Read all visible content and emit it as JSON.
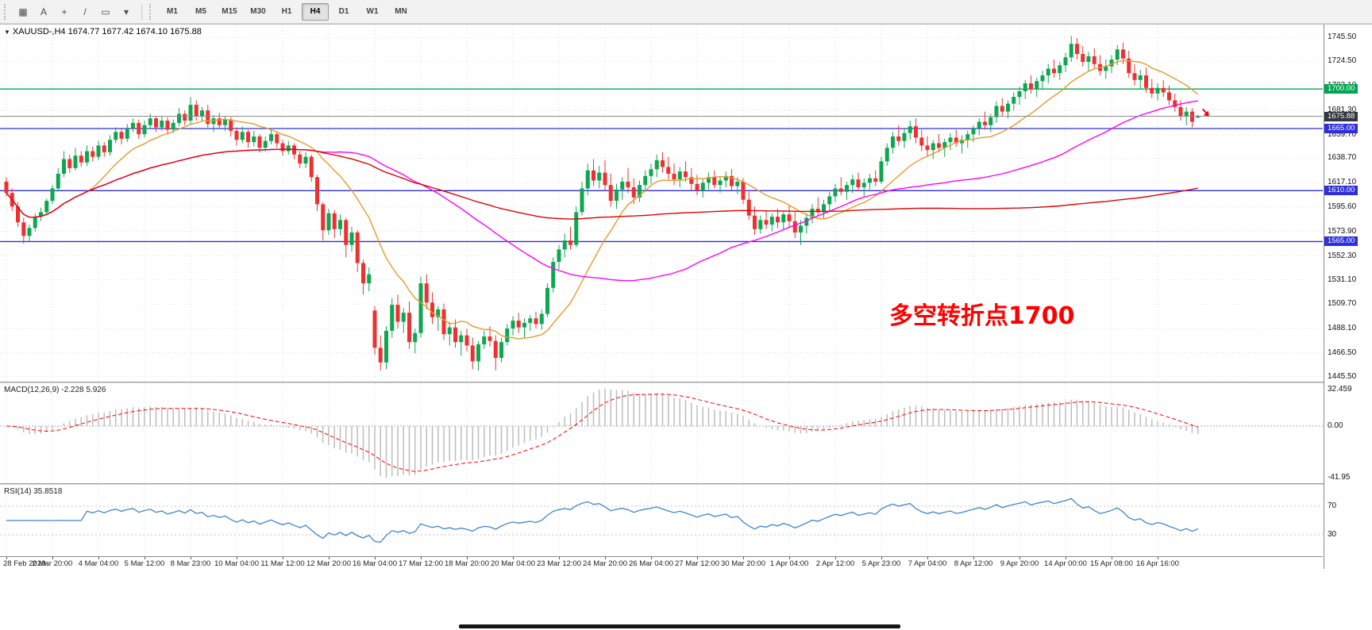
{
  "toolbar": {
    "tools": [
      {
        "name": "chart-grid-icon",
        "glyph": "▦"
      },
      {
        "name": "text-label-icon",
        "glyph": "A"
      },
      {
        "name": "crosshair-icon",
        "glyph": "+"
      },
      {
        "name": "trendline-icon",
        "glyph": "/"
      },
      {
        "name": "shapes-icon",
        "glyph": "▭"
      },
      {
        "name": "dropdown-arrow-icon",
        "glyph": "▾"
      }
    ],
    "timeframes": [
      "M1",
      "M5",
      "M15",
      "M30",
      "H1",
      "H4",
      "D1",
      "W1",
      "MN"
    ],
    "active_timeframe": "H4"
  },
  "chart": {
    "title_line": {
      "collapse_glyph": "▼",
      "symbol_period": "XAUUSD-,H4",
      "ohlc": "1674.77 1677.42 1674.10 1675.88"
    },
    "annotation": {
      "text": "多空转折点1700",
      "color": "#FF0000"
    },
    "current_price": {
      "value": 1675.88,
      "label": "1675.88"
    },
    "hlines": [
      {
        "price": 1700.0,
        "label": "1700.00",
        "color": "#00A651"
      },
      {
        "price": 1665.0,
        "label": "1665.00",
        "color": "#2E2EDD"
      },
      {
        "price": 1610.0,
        "label": "1610.00",
        "color": "#2E2EDD"
      },
      {
        "price": 1565.0,
        "label": "1565.00",
        "color": "#2E2EDD"
      }
    ],
    "price_ticks": [
      "1745.50",
      "1724.50",
      "1703.10",
      "1681.30",
      "1659.70",
      "1638.70",
      "1617.10",
      "1595.60",
      "1573.90",
      "1552.30",
      "1531.10",
      "1509.70",
      "1488.10",
      "1466.50",
      "1445.50"
    ],
    "colors": {
      "up": "#0CA750",
      "down": "#F03030",
      "grid": "#DEDEDE",
      "price_line": "#8a8a8a",
      "price_badge_bg": "#33363F"
    },
    "marker": {
      "type": "sell-arrow",
      "price": 1676,
      "color": "#FF0000"
    }
  },
  "chart_data": {
    "type": "candlestick",
    "symbol": "XAUUSD-",
    "timeframe": "H4",
    "y_range": [
      1441,
      1757
    ],
    "moving_averages": [
      {
        "period": 14,
        "color": "#E59B2C"
      },
      {
        "period": 55,
        "color": "#FF00FF"
      },
      {
        "period": 144,
        "color": "#DD0404"
      }
    ],
    "candles": [
      [
        1618,
        1622,
        1605,
        1608
      ],
      [
        1608,
        1612,
        1592,
        1596
      ],
      [
        1596,
        1600,
        1578,
        1582
      ],
      [
        1582,
        1586,
        1563,
        1570
      ],
      [
        1570,
        1580,
        1565,
        1577
      ],
      [
        1577,
        1590,
        1574,
        1587
      ],
      [
        1587,
        1595,
        1583,
        1591
      ],
      [
        1591,
        1603,
        1589,
        1601
      ],
      [
        1601,
        1615,
        1598,
        1612
      ],
      [
        1612,
        1630,
        1610,
        1625
      ],
      [
        1625,
        1645,
        1622,
        1638
      ],
      [
        1638,
        1642,
        1626,
        1630
      ],
      [
        1630,
        1648,
        1628,
        1641
      ],
      [
        1641,
        1645,
        1631,
        1635
      ],
      [
        1635,
        1650,
        1632,
        1645
      ],
      [
        1645,
        1649,
        1636,
        1640
      ],
      [
        1640,
        1654,
        1637,
        1650
      ],
      [
        1650,
        1653,
        1640,
        1644
      ],
      [
        1644,
        1659,
        1641,
        1655
      ],
      [
        1655,
        1666,
        1652,
        1662
      ],
      [
        1662,
        1665,
        1651,
        1656
      ],
      [
        1656,
        1669,
        1653,
        1665
      ],
      [
        1665,
        1674,
        1662,
        1670
      ],
      [
        1670,
        1673,
        1656,
        1660
      ],
      [
        1660,
        1672,
        1657,
        1668
      ],
      [
        1668,
        1678,
        1665,
        1674
      ],
      [
        1674,
        1676,
        1662,
        1666
      ],
      [
        1666,
        1676,
        1663,
        1672
      ],
      [
        1672,
        1675,
        1660,
        1664
      ],
      [
        1664,
        1673,
        1661,
        1670
      ],
      [
        1670,
        1683,
        1667,
        1678
      ],
      [
        1678,
        1681,
        1668,
        1672
      ],
      [
        1672,
        1693,
        1669,
        1686
      ],
      [
        1686,
        1690,
        1672,
        1676
      ],
      [
        1676,
        1684,
        1671,
        1681
      ],
      [
        1681,
        1686,
        1666,
        1669
      ],
      [
        1669,
        1677,
        1662,
        1674
      ],
      [
        1674,
        1679,
        1665,
        1668
      ],
      [
        1668,
        1676,
        1663,
        1673
      ],
      [
        1673,
        1675,
        1658,
        1663
      ],
      [
        1663,
        1666,
        1650,
        1655
      ],
      [
        1655,
        1667,
        1652,
        1662
      ],
      [
        1662,
        1664,
        1648,
        1653
      ],
      [
        1653,
        1663,
        1649,
        1658
      ],
      [
        1658,
        1660,
        1644,
        1648
      ],
      [
        1648,
        1658,
        1645,
        1654
      ],
      [
        1654,
        1664,
        1651,
        1660
      ],
      [
        1660,
        1662,
        1648,
        1652
      ],
      [
        1652,
        1655,
        1641,
        1645
      ],
      [
        1645,
        1654,
        1642,
        1650
      ],
      [
        1650,
        1652,
        1638,
        1642
      ],
      [
        1642,
        1645,
        1630,
        1634
      ],
      [
        1634,
        1644,
        1630,
        1640
      ],
      [
        1640,
        1642,
        1618,
        1622
      ],
      [
        1622,
        1624,
        1592,
        1598
      ],
      [
        1598,
        1600,
        1566,
        1575
      ],
      [
        1575,
        1594,
        1571,
        1590
      ],
      [
        1590,
        1593,
        1568,
        1576
      ],
      [
        1576,
        1589,
        1570,
        1584
      ],
      [
        1584,
        1586,
        1551,
        1562
      ],
      [
        1562,
        1578,
        1556,
        1573
      ],
      [
        1573,
        1575,
        1538,
        1546
      ],
      [
        1546,
        1549,
        1518,
        1528
      ],
      [
        1528,
        1542,
        1521,
        1536
      ],
      [
        1504,
        1508,
        1465,
        1471
      ],
      [
        1471,
        1482,
        1451,
        1458
      ],
      [
        1458,
        1490,
        1452,
        1486
      ],
      [
        1486,
        1515,
        1480,
        1509
      ],
      [
        1509,
        1518,
        1488,
        1494
      ],
      [
        1494,
        1506,
        1484,
        1502
      ],
      [
        1502,
        1512,
        1470,
        1476
      ],
      [
        1476,
        1488,
        1466,
        1484
      ],
      [
        1484,
        1534,
        1480,
        1528
      ],
      [
        1528,
        1536,
        1505,
        1511
      ],
      [
        1511,
        1520,
        1492,
        1498
      ],
      [
        1498,
        1508,
        1486,
        1505
      ],
      [
        1505,
        1510,
        1478,
        1483
      ],
      [
        1483,
        1494,
        1473,
        1489
      ],
      [
        1489,
        1496,
        1471,
        1476
      ],
      [
        1476,
        1486,
        1464,
        1482
      ],
      [
        1482,
        1488,
        1468,
        1473
      ],
      [
        1473,
        1480,
        1452,
        1459
      ],
      [
        1459,
        1477,
        1451,
        1474
      ],
      [
        1474,
        1486,
        1470,
        1481
      ],
      [
        1481,
        1490,
        1472,
        1477
      ],
      [
        1477,
        1482,
        1451,
        1462
      ],
      [
        1462,
        1480,
        1458,
        1476
      ],
      [
        1476,
        1492,
        1473,
        1488
      ],
      [
        1488,
        1499,
        1482,
        1495
      ],
      [
        1495,
        1502,
        1484,
        1489
      ],
      [
        1489,
        1497,
        1480,
        1493
      ],
      [
        1493,
        1500,
        1486,
        1497
      ],
      [
        1497,
        1503,
        1488,
        1492
      ],
      [
        1492,
        1505,
        1487,
        1501
      ],
      [
        1501,
        1528,
        1498,
        1524
      ],
      [
        1524,
        1551,
        1520,
        1547
      ],
      [
        1547,
        1562,
        1540,
        1558
      ],
      [
        1558,
        1572,
        1551,
        1566
      ],
      [
        1566,
        1578,
        1558,
        1562
      ],
      [
        1562,
        1596,
        1560,
        1591
      ],
      [
        1591,
        1618,
        1588,
        1612
      ],
      [
        1612,
        1634,
        1606,
        1628
      ],
      [
        1628,
        1638,
        1614,
        1619
      ],
      [
        1619,
        1632,
        1612,
        1626
      ],
      [
        1626,
        1637,
        1610,
        1615
      ],
      [
        1615,
        1625,
        1596,
        1601
      ],
      [
        1601,
        1616,
        1594,
        1611
      ],
      [
        1611,
        1622,
        1602,
        1618
      ],
      [
        1618,
        1630,
        1608,
        1613
      ],
      [
        1613,
        1621,
        1598,
        1604
      ],
      [
        1604,
        1619,
        1600,
        1615
      ],
      [
        1615,
        1628,
        1609,
        1623
      ],
      [
        1623,
        1634,
        1616,
        1629
      ],
      [
        1629,
        1642,
        1622,
        1637
      ],
      [
        1637,
        1644,
        1626,
        1631
      ],
      [
        1631,
        1640,
        1620,
        1625
      ],
      [
        1625,
        1634,
        1615,
        1620
      ],
      [
        1620,
        1631,
        1613,
        1627
      ],
      [
        1627,
        1636,
        1618,
        1622
      ],
      [
        1622,
        1630,
        1610,
        1616
      ],
      [
        1616,
        1624,
        1606,
        1610
      ],
      [
        1610,
        1620,
        1604,
        1617
      ],
      [
        1617,
        1626,
        1611,
        1622
      ],
      [
        1622,
        1628,
        1612,
        1615
      ],
      [
        1615,
        1623,
        1608,
        1619
      ],
      [
        1619,
        1627,
        1613,
        1623
      ],
      [
        1623,
        1629,
        1610,
        1614
      ],
      [
        1614,
        1622,
        1607,
        1618
      ],
      [
        1618,
        1621,
        1598,
        1602
      ],
      [
        1602,
        1609,
        1584,
        1588
      ],
      [
        1588,
        1596,
        1571,
        1576
      ],
      [
        1576,
        1588,
        1572,
        1584
      ],
      [
        1584,
        1592,
        1576,
        1580
      ],
      [
        1580,
        1590,
        1574,
        1587
      ],
      [
        1587,
        1594,
        1577,
        1582
      ],
      [
        1582,
        1591,
        1575,
        1589
      ],
      [
        1589,
        1597,
        1578,
        1583
      ],
      [
        1583,
        1592,
        1568,
        1573
      ],
      [
        1573,
        1584,
        1562,
        1579
      ],
      [
        1579,
        1590,
        1572,
        1586
      ],
      [
        1586,
        1598,
        1581,
        1594
      ],
      [
        1594,
        1604,
        1587,
        1591
      ],
      [
        1591,
        1602,
        1585,
        1598
      ],
      [
        1598,
        1609,
        1592,
        1605
      ],
      [
        1605,
        1616,
        1600,
        1612
      ],
      [
        1612,
        1622,
        1606,
        1609
      ],
      [
        1609,
        1618,
        1602,
        1615
      ],
      [
        1615,
        1624,
        1608,
        1620
      ],
      [
        1620,
        1626,
        1610,
        1613
      ],
      [
        1613,
        1621,
        1605,
        1617
      ],
      [
        1617,
        1625,
        1611,
        1621
      ],
      [
        1621,
        1628,
        1614,
        1618
      ],
      [
        1618,
        1640,
        1616,
        1636
      ],
      [
        1636,
        1652,
        1632,
        1648
      ],
      [
        1648,
        1662,
        1643,
        1658
      ],
      [
        1658,
        1668,
        1650,
        1654
      ],
      [
        1654,
        1665,
        1648,
        1661
      ],
      [
        1661,
        1672,
        1655,
        1667
      ],
      [
        1667,
        1674,
        1652,
        1657
      ],
      [
        1657,
        1664,
        1645,
        1650
      ],
      [
        1650,
        1658,
        1641,
        1646
      ],
      [
        1646,
        1655,
        1638,
        1652
      ],
      [
        1652,
        1660,
        1644,
        1648
      ],
      [
        1648,
        1656,
        1640,
        1653
      ],
      [
        1653,
        1661,
        1646,
        1657
      ],
      [
        1657,
        1664,
        1649,
        1652
      ],
      [
        1652,
        1659,
        1643,
        1655
      ],
      [
        1655,
        1663,
        1648,
        1660
      ],
      [
        1660,
        1668,
        1653,
        1665
      ],
      [
        1665,
        1674,
        1659,
        1671
      ],
      [
        1671,
        1680,
        1664,
        1668
      ],
      [
        1668,
        1678,
        1662,
        1675
      ],
      [
        1675,
        1689,
        1670,
        1685
      ],
      [
        1685,
        1692,
        1676,
        1680
      ],
      [
        1680,
        1690,
        1674,
        1687
      ],
      [
        1687,
        1697,
        1681,
        1693
      ],
      [
        1693,
        1702,
        1686,
        1698
      ],
      [
        1698,
        1708,
        1691,
        1705
      ],
      [
        1705,
        1712,
        1696,
        1700
      ],
      [
        1700,
        1710,
        1693,
        1707
      ],
      [
        1707,
        1716,
        1700,
        1712
      ],
      [
        1712,
        1722,
        1705,
        1718
      ],
      [
        1718,
        1726,
        1710,
        1714
      ],
      [
        1714,
        1724,
        1708,
        1721
      ],
      [
        1721,
        1732,
        1715,
        1728
      ],
      [
        1728,
        1747,
        1724,
        1740
      ],
      [
        1740,
        1745,
        1726,
        1731
      ],
      [
        1731,
        1738,
        1720,
        1724
      ],
      [
        1724,
        1733,
        1716,
        1729
      ],
      [
        1729,
        1736,
        1718,
        1722
      ],
      [
        1722,
        1730,
        1712,
        1716
      ],
      [
        1716,
        1726,
        1709,
        1720
      ],
      [
        1720,
        1730,
        1714,
        1726
      ],
      [
        1726,
        1739,
        1721,
        1735
      ],
      [
        1735,
        1741,
        1722,
        1727
      ],
      [
        1727,
        1734,
        1710,
        1714
      ],
      [
        1714,
        1722,
        1703,
        1708
      ],
      [
        1708,
        1717,
        1700,
        1712
      ],
      [
        1712,
        1719,
        1697,
        1701
      ],
      [
        1701,
        1709,
        1692,
        1696
      ],
      [
        1696,
        1705,
        1690,
        1701
      ],
      [
        1701,
        1708,
        1693,
        1697
      ],
      [
        1697,
        1703,
        1686,
        1690
      ],
      [
        1690,
        1696,
        1680,
        1684
      ],
      [
        1684,
        1690,
        1672,
        1676
      ],
      [
        1676,
        1684,
        1668,
        1680
      ],
      [
        1680,
        1683,
        1666,
        1671
      ],
      [
        1674.77,
        1677.42,
        1674.1,
        1675.88
      ]
    ]
  },
  "macd": {
    "label": "MACD(12,26,9)",
    "values_text": "-2.228 5.926",
    "params": {
      "fast": 12,
      "slow": 26,
      "signal": 9
    },
    "ticks": [
      "32.459",
      "0.00",
      "-41.95"
    ],
    "histogram_color": "#BDBDBD",
    "signal_color": "#FF0000"
  },
  "rsi": {
    "label": "RSI(14)",
    "value_text": "35.8518",
    "period": 14,
    "levels": [
      70,
      30
    ],
    "ticks": [
      "70",
      "30"
    ],
    "color": "#3F85CC",
    "level_color": "#C3C3C3"
  },
  "time_axis": {
    "labels": [
      "28 Feb 2020",
      "2 Mar 20:00",
      "4 Mar 04:00",
      "5 Mar 12:00",
      "8 Mar 23:00",
      "10 Mar 04:00",
      "11 Mar 12:00",
      "12 Mar 20:00",
      "16 Mar 04:00",
      "17 Mar 12:00",
      "18 Mar 20:00",
      "20 Mar 04:00",
      "23 Mar 12:00",
      "24 Mar 20:00",
      "26 Mar 04:00",
      "27 Mar 12:00",
      "30 Mar 20:00",
      "1 Apr 04:00",
      "2 Apr 12:00",
      "5 Apr 23:00",
      "7 Apr 04:00",
      "8 Apr 12:00",
      "9 Apr 20:00",
      "14 Apr 00:00",
      "15 Apr 08:00",
      "16 Apr 16:00"
    ]
  }
}
